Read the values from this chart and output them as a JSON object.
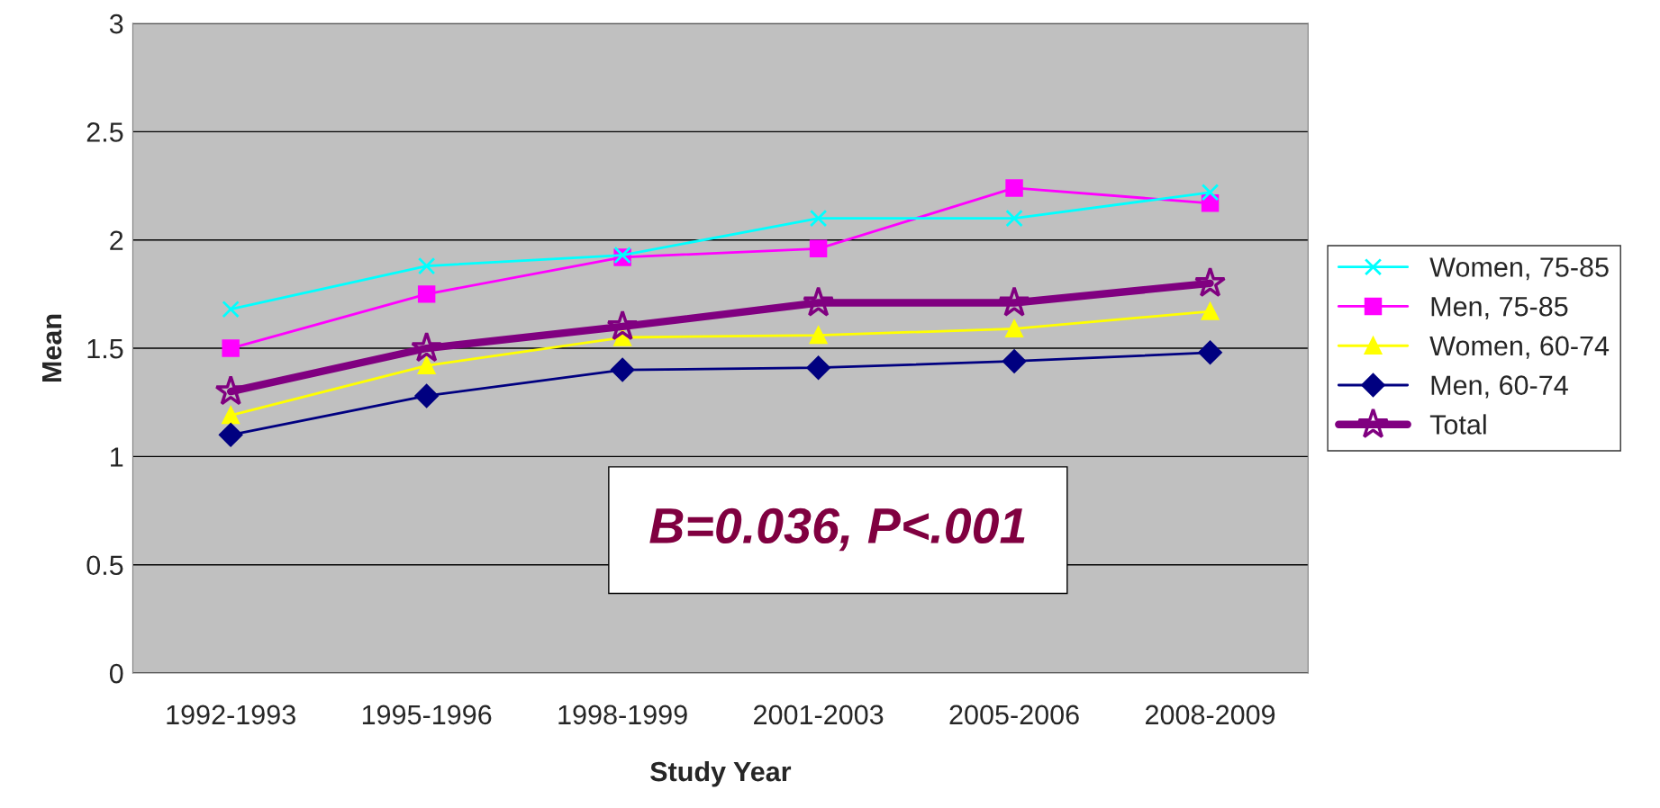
{
  "chart_data": {
    "type": "line",
    "xlabel": "Study Year",
    "ylabel": "Mean",
    "categories": [
      "1992-1993",
      "1995-1996",
      "1998-1999",
      "2001-2003",
      "2005-2006",
      "2008-2009"
    ],
    "series": [
      {
        "name": "Women, 75-85",
        "color": "#00ffff",
        "marker": "cross",
        "values": [
          1.68,
          1.88,
          1.93,
          2.1,
          2.1,
          2.22
        ]
      },
      {
        "name": "Men, 75-85",
        "color": "#ff00ff",
        "marker": "square",
        "values": [
          1.5,
          1.75,
          1.92,
          1.96,
          2.24,
          2.17
        ]
      },
      {
        "name": "Women, 60-74",
        "color": "#ffff00",
        "marker": "triangle",
        "values": [
          1.19,
          1.42,
          1.55,
          1.56,
          1.59,
          1.67
        ]
      },
      {
        "name": "Men, 60-74",
        "color": "#000080",
        "marker": "diamond",
        "values": [
          1.1,
          1.28,
          1.4,
          1.41,
          1.44,
          1.48
        ]
      },
      {
        "name": "Total",
        "color": "#800080",
        "marker": "star",
        "values": [
          1.3,
          1.5,
          1.6,
          1.71,
          1.71,
          1.8
        ]
      }
    ],
    "ylim": [
      0,
      3
    ],
    "yticks": [
      0,
      0.5,
      1,
      1.5,
      2,
      2.5,
      3
    ],
    "grid": "y",
    "legend": "right",
    "line_style": "solid",
    "annotations": [
      "B=0.036, P<.001"
    ]
  }
}
